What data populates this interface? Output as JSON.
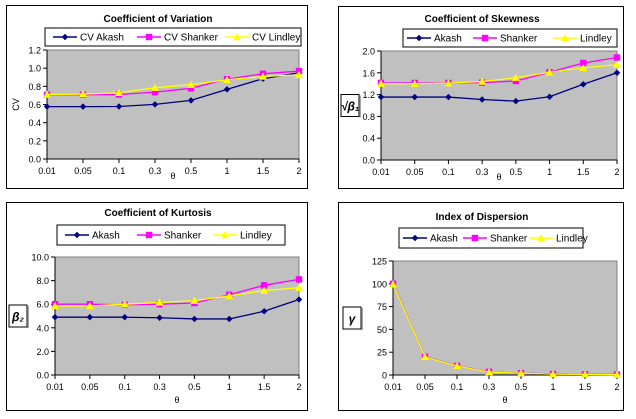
{
  "colors": {
    "akash": "#000080",
    "shanker": "#FF00FF",
    "lindley": "#FFFF00",
    "plot_bg": "#C0C0C0",
    "plot_border": "#808080"
  },
  "chart_data": [
    {
      "id": "cv",
      "type": "line",
      "title": "Coefficient of Variation",
      "xlabel": "θ",
      "ylabel": "CV",
      "ylabel_style": "text",
      "categories": [
        "0.01",
        "0.05",
        "0.1",
        "0.3",
        "0.5",
        "1",
        "1.5",
        "2"
      ],
      "ylim": [
        0,
        1.2
      ],
      "yticks": [
        0,
        0.2,
        0.4,
        0.6,
        0.8,
        1.0,
        1.2
      ],
      "ytick_labels": [
        "0.0",
        "0.2",
        "0.4",
        "0.6",
        "0.8",
        "1.0",
        "1.2"
      ],
      "grid": false,
      "legend": "top",
      "series": [
        {
          "name": "CV Akash",
          "key": "akash",
          "marker": "diamond",
          "values": [
            0.577,
            0.577,
            0.578,
            0.601,
            0.645,
            0.767,
            0.884,
            0.95
          ]
        },
        {
          "name": "CV Shanker",
          "key": "shanker",
          "marker": "square",
          "values": [
            0.707,
            0.707,
            0.71,
            0.736,
            0.778,
            0.879,
            0.938,
            0.968
          ]
        },
        {
          "name": "CV Lindley",
          "key": "lindley",
          "marker": "triangle",
          "values": [
            0.71,
            0.715,
            0.729,
            0.785,
            0.818,
            0.872,
            0.908,
            0.926
          ]
        }
      ]
    },
    {
      "id": "skewness",
      "type": "line",
      "title": "Coefficient of Skewness",
      "xlabel": "θ",
      "ylabel": "√β₁",
      "ylabel_style": "boxed",
      "categories": [
        "0.01",
        "0.05",
        "0.1",
        "0.3",
        "0.5",
        "1",
        "1.5",
        "2"
      ],
      "ylim": [
        0,
        2.0
      ],
      "yticks": [
        0,
        0.4,
        0.8,
        1.2,
        1.6,
        2.0
      ],
      "ytick_labels": [
        "0.0",
        "0.4",
        "0.8",
        "1.2",
        "1.6",
        "2.0"
      ],
      "grid": false,
      "legend": "top",
      "series": [
        {
          "name": "Akash",
          "key": "akash",
          "marker": "diamond",
          "values": [
            1.155,
            1.155,
            1.155,
            1.11,
            1.08,
            1.16,
            1.39,
            1.6
          ]
        },
        {
          "name": "Shanker",
          "key": "shanker",
          "marker": "square",
          "values": [
            1.414,
            1.414,
            1.414,
            1.42,
            1.45,
            1.61,
            1.78,
            1.88
          ]
        },
        {
          "name": "Lindley",
          "key": "lindley",
          "marker": "triangle",
          "values": [
            1.4,
            1.4,
            1.41,
            1.44,
            1.51,
            1.61,
            1.69,
            1.75
          ]
        }
      ]
    },
    {
      "id": "kurtosis",
      "type": "line",
      "title": "Coefficient of Kurtosis",
      "xlabel": "θ",
      "ylabel": "β₂",
      "ylabel_style": "boxed",
      "categories": [
        "0.01",
        "0.05",
        "0.1",
        "0.3",
        "0.5",
        "1",
        "1.5",
        "2"
      ],
      "ylim": [
        0,
        10
      ],
      "yticks": [
        0,
        2,
        4,
        6,
        8,
        10
      ],
      "ytick_labels": [
        "0.0",
        "2.0",
        "4.0",
        "6.0",
        "8.0",
        "10.0"
      ],
      "grid": false,
      "legend": "top",
      "series": [
        {
          "name": "Akash",
          "key": "akash",
          "marker": "diamond",
          "values": [
            4.9,
            4.9,
            4.9,
            4.85,
            4.75,
            4.75,
            5.4,
            6.4
          ]
        },
        {
          "name": "Shanker",
          "key": "shanker",
          "marker": "square",
          "values": [
            6.0,
            6.0,
            5.95,
            6.0,
            6.1,
            6.8,
            7.6,
            8.1
          ]
        },
        {
          "name": "Lindley",
          "key": "lindley",
          "marker": "triangle",
          "values": [
            5.85,
            5.85,
            6.0,
            6.15,
            6.3,
            6.7,
            7.15,
            7.4
          ]
        }
      ]
    },
    {
      "id": "dispersion",
      "type": "line",
      "title": "Index of Dispersion",
      "xlabel": "θ",
      "ylabel": "γ",
      "ylabel_style": "boxed",
      "categories": [
        "0.01",
        "0.05",
        "0.1",
        "0.3",
        "0.5",
        "1",
        "1.5",
        "2"
      ],
      "ylim": [
        0,
        125
      ],
      "yticks": [
        0,
        25,
        50,
        75,
        100,
        125
      ],
      "ytick_labels": [
        "0",
        "25",
        "50",
        "75",
        "100",
        "125"
      ],
      "grid": false,
      "legend": "top",
      "series": [
        {
          "name": "Akash",
          "key": "akash",
          "marker": "diamond",
          "values": [
            100,
            20,
            10,
            3.3,
            2,
            1.2,
            0.8,
            0.6
          ]
        },
        {
          "name": "Shanker",
          "key": "shanker",
          "marker": "square",
          "values": [
            100,
            20,
            10,
            3.5,
            1.9,
            1.0,
            0.7,
            0.5
          ]
        },
        {
          "name": "Lindley",
          "key": "lindley",
          "marker": "triangle",
          "values": [
            99.5,
            19.8,
            9.9,
            3.2,
            2.0,
            1.0,
            0.7,
            0.5
          ]
        }
      ]
    }
  ]
}
